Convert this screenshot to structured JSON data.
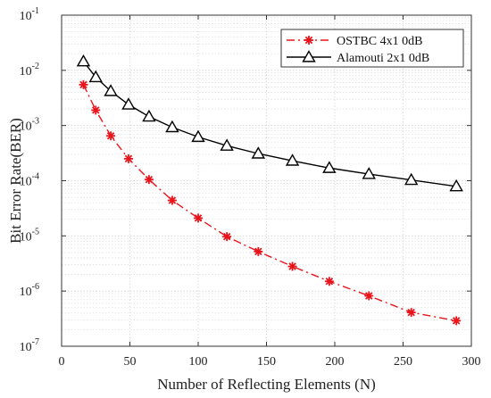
{
  "chart_data": {
    "type": "line",
    "title": "",
    "xlabel": "Number of Reflecting Elements (N)",
    "ylabel": "Bit Error Rate(BER)",
    "xlim": [
      0,
      300
    ],
    "ylim": [
      1e-07,
      0.1
    ],
    "yscale": "log",
    "grid": true,
    "legend_position": "top-right",
    "x_ticks": [
      "0",
      "50",
      "100",
      "150",
      "200",
      "250",
      "300"
    ],
    "y_ticks": [
      {
        "base": "10",
        "exp": "-7"
      },
      {
        "base": "10",
        "exp": "-6"
      },
      {
        "base": "10",
        "exp": "-5"
      },
      {
        "base": "10",
        "exp": "-4"
      },
      {
        "base": "10",
        "exp": "-3"
      },
      {
        "base": "10",
        "exp": "-2"
      },
      {
        "base": "10",
        "exp": "-1"
      }
    ],
    "series": [
      {
        "name": "OSTBC 4x1 0dB",
        "color": "#e8141c",
        "line_style": "dash-dot",
        "marker": "asterisk",
        "x": [
          16,
          25,
          36,
          49,
          64,
          81,
          100,
          121,
          144,
          169,
          196,
          225,
          256,
          289
        ],
        "y": [
          0.0055,
          0.0019,
          0.00065,
          0.00025,
          0.000105,
          4.4e-05,
          2.1e-05,
          9.7e-06,
          5.2e-06,
          2.8e-06,
          1.5e-06,
          8.2e-07,
          4.1e-07,
          2.9e-07
        ]
      },
      {
        "name": "Alamouti 2x1 0dB",
        "color": "#000000",
        "line_style": "solid",
        "marker": "triangle",
        "x": [
          16,
          25,
          36,
          49,
          64,
          81,
          100,
          121,
          144,
          169,
          196,
          225,
          256,
          289
        ],
        "y": [
          0.0145,
          0.0075,
          0.0042,
          0.0024,
          0.00145,
          0.00093,
          0.00062,
          0.00043,
          0.00031,
          0.00023,
          0.00017,
          0.000132,
          0.000103,
          7.9e-05
        ]
      }
    ]
  }
}
